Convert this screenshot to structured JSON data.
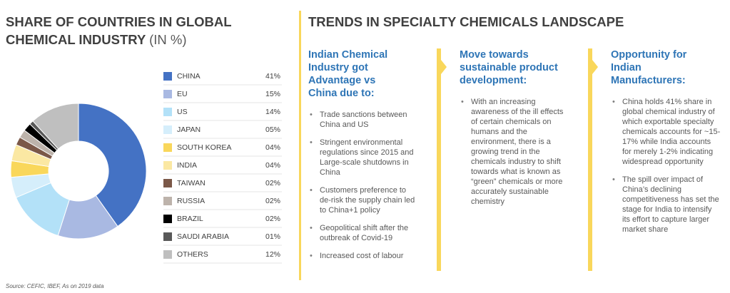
{
  "chart_data": {
    "type": "donut",
    "title": "SHARE OF COUNTRIES IN GLOBAL CHEMICAL INDUSTRY",
    "subtitle": "(IN %)",
    "categories": [
      "CHINA",
      "EU",
      "US",
      "JAPAN",
      "SOUTH KOREA",
      "INDIA",
      "TAIWAN",
      "RUSSIA",
      "BRAZIL",
      "SAUDI ARABIA",
      "OTHERS"
    ],
    "values": [
      41,
      15,
      14,
      5,
      4,
      4,
      2,
      2,
      2,
      1,
      12
    ],
    "value_labels": [
      "41%",
      "15%",
      "14%",
      "05%",
      "04%",
      "04%",
      "02%",
      "02%",
      "02%",
      "01%",
      "12%"
    ],
    "colors": [
      "#4472c4",
      "#a9b9e2",
      "#b3e1f8",
      "#d5eefb",
      "#f9d75b",
      "#fbe8a3",
      "#7b5848",
      "#bdb3ab",
      "#000000",
      "#595959",
      "#bfbfbf"
    ]
  },
  "trends": {
    "title": "TRENDS IN SPECIALTY CHEMICALS LANDSCAPE",
    "columns": [
      {
        "heading": "Indian Chemical Industry got Advantage vs China due to:",
        "bullets": [
          "Trade sanctions between China and US",
          "Stringent environmental regulations since 2015 and Large-scale shutdowns in China",
          "Customers preference to de-risk the supply chain led to China+1 policy",
          "Geopolitical shift after the outbreak of Covid-19",
          "Increased cost of labour"
        ]
      },
      {
        "heading": "Move towards sustainable product development:",
        "bullets": [
          "With an increasing awareness of the ill effects of certain chemicals on humans and the environment, there is a growing trend in the chemicals industry to shift towards what is known as “green” chemicals or more accurately sustainable chemistry"
        ]
      },
      {
        "heading": "Opportunity for Indian Manufacturers:",
        "bullets": [
          "China holds 41% share in global chemical industry of which exportable specialty chemicals accounts for ~15-17% while India accounts for merely 1-2% indicating widespread opportunity",
          "The spill over impact of China’s declining competitiveness has set the stage for India to intensify its effort to capture larger market share"
        ]
      }
    ]
  },
  "source": "Source: CEFIC, IBEF, As on 2019 data"
}
